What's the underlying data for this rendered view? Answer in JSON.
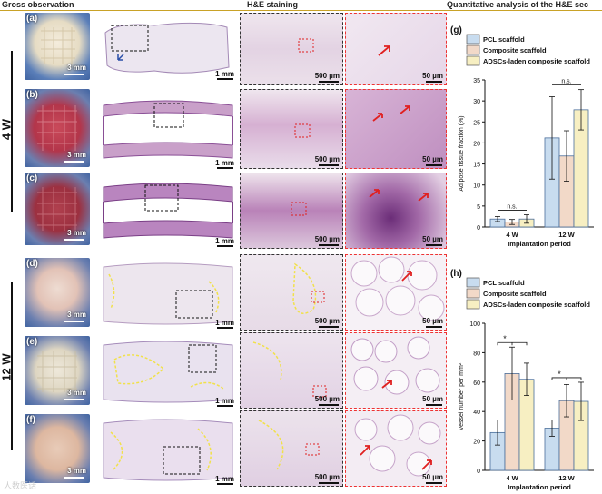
{
  "headers": {
    "gross": "Gross observation",
    "he": "H&E staining",
    "quant": "Quantitative analysis of the H&E sec"
  },
  "colors": {
    "pcl": "#c8dcef",
    "composite": "#f2d9c8",
    "adscs": "#f7efc2",
    "accent": "#c9a227",
    "arrow_red": "#e02020",
    "arrow_blue": "#2a4fa8",
    "outline_yellow": "#f1e14a"
  },
  "row_labels": [
    "(a)",
    "(b)",
    "(c)",
    "(d)",
    "(e)",
    "(f)"
  ],
  "scales": {
    "gross": "3 mm",
    "overview": "1 mm",
    "he": "500 µm",
    "mag": "50 µm"
  },
  "week_labels": {
    "w4": "4 W",
    "w12": "12 W"
  },
  "watermark": "人数医话",
  "chart_data": [
    {
      "panel": "(g)",
      "type": "bar",
      "categories": [
        "4 W",
        "12 W"
      ],
      "series": [
        {
          "name": "PCL scaffold",
          "values": [
            1.9,
            21.2
          ],
          "errors": [
            0.6,
            9.8
          ]
        },
        {
          "name": "Composite scaffold",
          "values": [
            1.2,
            16.9
          ],
          "errors": [
            0.6,
            6.0
          ]
        },
        {
          "name": "ADSCs-laden composite scaffold",
          "values": [
            1.9,
            27.9
          ],
          "errors": [
            1.0,
            4.8
          ]
        }
      ],
      "ylabel": "Adipose tissue fraction (%)",
      "xlabel": "Implantation period",
      "ylim": [
        0,
        35
      ],
      "yticks": [
        "0",
        "5",
        "10",
        "15",
        "20",
        "25",
        "30",
        "35"
      ],
      "annotations": [
        "n.s.",
        "n.s."
      ],
      "legend_labels": [
        "PCL scaffold",
        "Composite scaffold",
        "ADSCs-laden composite scaffold"
      ]
    },
    {
      "panel": "(h)",
      "type": "bar",
      "categories": [
        "4 W",
        "12 W"
      ],
      "series": [
        {
          "name": "PCL scaffold",
          "values": [
            25.7,
            28.7
          ],
          "errors": [
            8.5,
            5.5
          ]
        },
        {
          "name": "Composite scaffold",
          "values": [
            65.8,
            47.4
          ],
          "errors": [
            18.0,
            11.0
          ]
        },
        {
          "name": "ADSCs-laden composite scaffold",
          "values": [
            61.9,
            46.9
          ],
          "errors": [
            11.0,
            13.0
          ]
        }
      ],
      "ylabel": "Vessel number per mm²",
      "xlabel": "Implantation period",
      "ylim": [
        0,
        100
      ],
      "yticks": [
        "0",
        "20",
        "40",
        "60",
        "80",
        "100"
      ],
      "annotations": [
        "*",
        "*"
      ],
      "legend_labels": [
        "PCL scaffold",
        "Composite scaffold",
        "ADSCs-laden composite scaffold"
      ]
    }
  ]
}
